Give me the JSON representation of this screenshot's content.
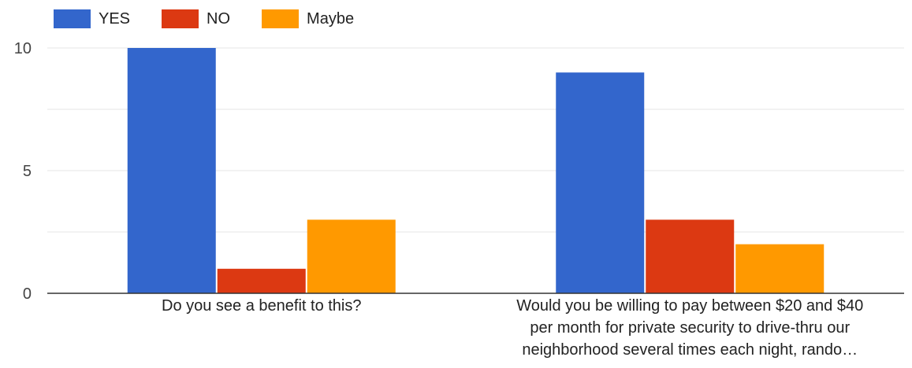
{
  "chart_data": {
    "type": "bar",
    "categories": [
      "Do you see a benefit to this?",
      "Would you be willing to pay between $20 and $40 per month for private security to drive-thru our neighborhood several times each night, rando…"
    ],
    "series": [
      {
        "name": "YES",
        "color": "#3366cc",
        "values": [
          10,
          9
        ]
      },
      {
        "name": "NO",
        "color": "#dc3912",
        "values": [
          1,
          3
        ]
      },
      {
        "name": "Maybe",
        "color": "#ff9900",
        "values": [
          3,
          2
        ]
      }
    ],
    "yticks": [
      0,
      5,
      10
    ],
    "ylim": [
      0,
      10
    ],
    "legend_position": "top-left",
    "grid": true
  },
  "category_label_lines": [
    [
      "Do you see a benefit to this?"
    ],
    [
      "Would you be willing to pay between $20 and $40",
      "per month for private security to drive-thru our",
      "neighborhood several times each night, rando…"
    ]
  ]
}
